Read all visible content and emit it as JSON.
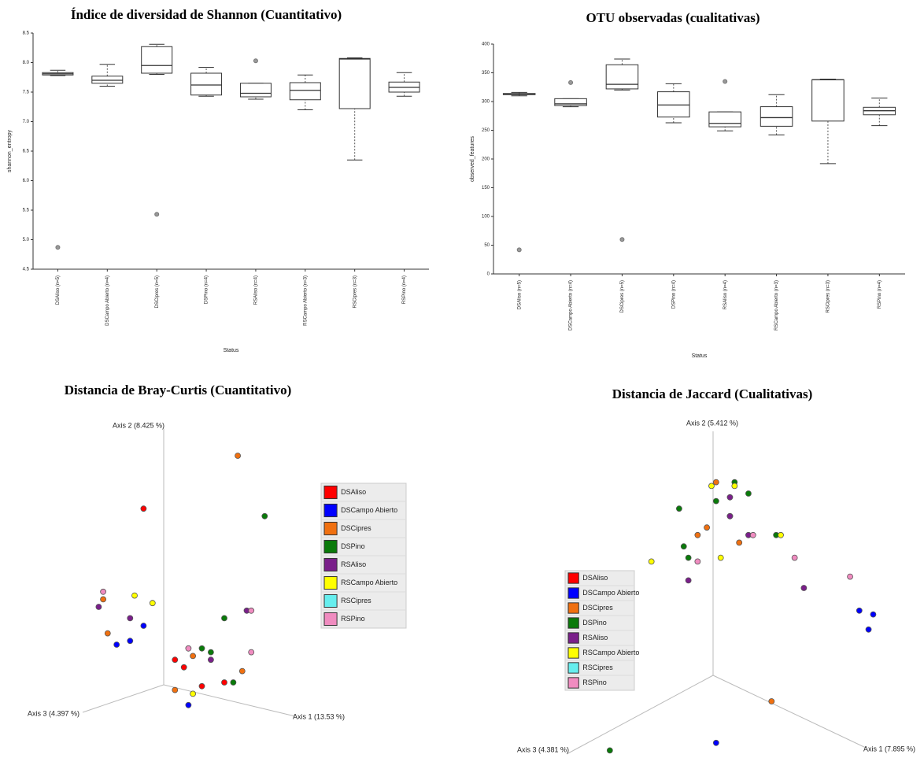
{
  "chart_data": [
    {
      "type": "box",
      "title": "Índice de diversidad de Shannon (Cuantitativo)",
      "xlabel": "Status",
      "ylabel": "shannon_entropy",
      "categories": [
        "DSAliso (n=5)",
        "DSCampo Abierto (n=4)",
        "DSCipres (n=5)",
        "DSPino (n=4)",
        "RSAliso (n=4)",
        "RSCampo Abierto (n=3)",
        "RSCipres (n=3)",
        "RSPino (n=4)"
      ],
      "boxes": [
        {
          "min": 7.78,
          "q1": 7.79,
          "median": 7.81,
          "q3": 7.83,
          "max": 7.87,
          "outliers": [
            4.87
          ]
        },
        {
          "min": 7.6,
          "q1": 7.65,
          "median": 7.7,
          "q3": 7.77,
          "max": 7.97,
          "outliers": []
        },
        {
          "min": 7.8,
          "q1": 7.82,
          "median": 7.95,
          "q3": 8.27,
          "max": 8.31,
          "outliers": [
            5.43
          ]
        },
        {
          "min": 7.43,
          "q1": 7.45,
          "median": 7.62,
          "q3": 7.82,
          "max": 7.92,
          "outliers": []
        },
        {
          "min": 7.38,
          "q1": 7.42,
          "median": 7.48,
          "q3": 7.65,
          "max": 7.65,
          "outliers": [
            8.03
          ]
        },
        {
          "min": 7.2,
          "q1": 7.37,
          "median": 7.53,
          "q3": 7.66,
          "max": 7.79,
          "outliers": []
        },
        {
          "min": 6.35,
          "q1": 7.22,
          "median": 8.06,
          "q3": 8.07,
          "max": 8.08,
          "outliers": []
        },
        {
          "min": 7.43,
          "q1": 7.5,
          "median": 7.58,
          "q3": 7.67,
          "max": 7.83,
          "outliers": []
        }
      ],
      "ylim": [
        4.5,
        8.5
      ],
      "yticks": [
        4.5,
        {
          "value": 5,
          "label": "5.0"
        },
        5.5,
        {
          "value": 6,
          "label": "6.0"
        },
        6.5,
        {
          "value": 7,
          "label": "7.0"
        },
        7.5,
        {
          "value": 8,
          "label": "8.0"
        },
        8.5
      ]
    },
    {
      "type": "box",
      "title": "OTU observadas (cualitativas)",
      "xlabel": "Status",
      "ylabel": "observed_features",
      "categories": [
        "DSAliso (n=5)",
        "DSCampo Abierto (n=4)",
        "DSCipres (n=5)",
        "DSPino (n=4)",
        "RSAliso (n=4)",
        "RSCampo Abierto (n=3)",
        "RSCipres (n=3)",
        "RSPino (n=4)"
      ],
      "boxes": [
        {
          "min": 310,
          "q1": 312,
          "median": 313,
          "q3": 314,
          "max": 316,
          "outliers": [
            42
          ]
        },
        {
          "min": 291,
          "q1": 293,
          "median": 296,
          "q3": 305,
          "max": 305,
          "outliers": [
            333
          ]
        },
        {
          "min": 320,
          "q1": 322,
          "median": 330,
          "q3": 364,
          "max": 374,
          "outliers": [
            60
          ]
        },
        {
          "min": 263,
          "q1": 273,
          "median": 294,
          "q3": 317,
          "max": 331,
          "outliers": []
        },
        {
          "min": 249,
          "q1": 256,
          "median": 262,
          "q3": 282,
          "max": 282,
          "outliers": [
            335
          ]
        },
        {
          "min": 242,
          "q1": 257,
          "median": 272,
          "q3": 291,
          "max": 312,
          "outliers": []
        },
        {
          "min": 192,
          "q1": 266,
          "median": 338,
          "q3": 338,
          "max": 339,
          "outliers": []
        },
        {
          "min": 258,
          "q1": 277,
          "median": 284,
          "q3": 290,
          "max": 306,
          "outliers": []
        }
      ],
      "ylim": [
        0,
        400
      ],
      "yticks": [
        0,
        50,
        100,
        150,
        200,
        250,
        300,
        350,
        400
      ]
    },
    {
      "type": "scatter3d",
      "title": "Distancia de Bray-Curtis (Cuantitativo)",
      "axis_labels": [
        "Axis 1 (13.53 %)",
        "Axis 2 (8.425 %)",
        "Axis 3 (4.397 %)"
      ],
      "legend_position": "right",
      "xlim": [
        0,
        100
      ],
      "ylim": [
        0,
        100
      ],
      "series": [
        {
          "name": "DSAliso",
          "color": "#ff0000",
          "x": [
            32,
            39,
            41,
            45,
            50
          ],
          "y": [
            66,
            26,
            24,
            19,
            20
          ]
        },
        {
          "name": "DSCampo Abierto",
          "color": "#0000ff",
          "x": [
            32,
            26,
            29,
            42
          ],
          "y": [
            35,
            30,
            31,
            14
          ]
        },
        {
          "name": "DSCipres",
          "color": "#f07010",
          "x": [
            53,
            23,
            24,
            43,
            39,
            54
          ],
          "y": [
            80,
            42,
            33,
            27,
            18,
            23
          ]
        },
        {
          "name": "DSPino",
          "color": "#0a7a0a",
          "x": [
            59,
            50,
            45,
            47,
            52
          ],
          "y": [
            64,
            37,
            29,
            28,
            20
          ]
        },
        {
          "name": "RSAliso",
          "color": "#7a1f8a",
          "x": [
            22,
            29,
            47,
            55
          ],
          "y": [
            40,
            37,
            26,
            39
          ]
        },
        {
          "name": "RSCampo Abierto",
          "color": "#ffff00",
          "x": [
            30,
            34,
            43
          ],
          "y": [
            43,
            41,
            17
          ]
        },
        {
          "name": "RSCipres",
          "color": "#66eeee",
          "x": [],
          "y": []
        },
        {
          "name": "RSPino",
          "color": "#f08cc0",
          "x": [
            23,
            56,
            42,
            56
          ],
          "y": [
            44,
            39,
            29,
            28
          ]
        }
      ]
    },
    {
      "type": "scatter3d",
      "title": "Distancia de Jaccard (Cualitativas)",
      "axis_labels": [
        "Axis 1 (7.895 %)",
        "Axis 2 (5.412 %)",
        "Axis 3 (4.381 %)"
      ],
      "legend_position": "left",
      "xlim": [
        0,
        100
      ],
      "ylim": [
        0,
        100
      ],
      "series": [
        {
          "name": "DSAliso",
          "color": "#ff0000",
          "x": [],
          "y": []
        },
        {
          "name": "DSCampo Abierto",
          "color": "#0000ff",
          "x": [
            86,
            89,
            88,
            55
          ],
          "y": [
            39,
            38,
            34,
            4
          ]
        },
        {
          "name": "DSCipres",
          "color": "#f07010",
          "x": [
            55,
            53,
            51,
            60,
            58,
            67
          ],
          "y": [
            73,
            61,
            59,
            57,
            64,
            15
          ]
        },
        {
          "name": "DSPino",
          "color": "#0a7a0a",
          "x": [
            59,
            47,
            55,
            62,
            48,
            49,
            68,
            32
          ],
          "y": [
            73,
            66,
            68,
            70,
            56,
            53,
            59,
            2
          ]
        },
        {
          "name": "RSAliso",
          "color": "#7a1f8a",
          "x": [
            58,
            58,
            62,
            49,
            74
          ],
          "y": [
            69,
            64,
            59,
            47,
            45
          ]
        },
        {
          "name": "RSCampo Abierto",
          "color": "#ffff00",
          "x": [
            54,
            59,
            41,
            56,
            69
          ],
          "y": [
            72,
            72,
            52,
            53,
            59
          ]
        },
        {
          "name": "RSCipres",
          "color": "#66eeee",
          "x": [],
          "y": []
        },
        {
          "name": "RSPino",
          "color": "#f08cc0",
          "x": [
            63,
            51,
            72,
            84
          ],
          "y": [
            59,
            52,
            53,
            48
          ]
        }
      ]
    }
  ]
}
